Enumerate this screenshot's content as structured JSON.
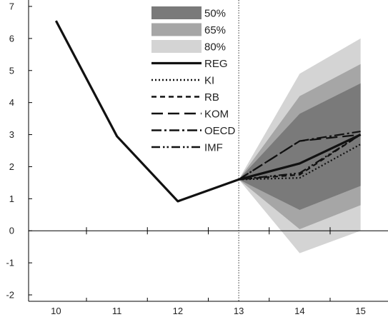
{
  "chart_data": {
    "type": "line",
    "title": "",
    "xlabel": "",
    "ylabel": "",
    "x_ticks": [
      10,
      11,
      12,
      13,
      14,
      15
    ],
    "y_ticks": [
      -2,
      -1,
      0,
      1,
      2,
      3,
      4,
      5,
      6,
      7
    ],
    "xlim": [
      9.55,
      15.45
    ],
    "ylim": [
      -2.2,
      7.2
    ],
    "forecast_start": 13,
    "legend_position": "top-center",
    "fan_bands": [
      {
        "name": "80%",
        "color": "#d4d4d4",
        "x": [
          13,
          14,
          15
        ],
        "low": [
          1.6,
          -0.7,
          0.0
        ],
        "high": [
          1.6,
          4.9,
          6.0
        ]
      },
      {
        "name": "65%",
        "color": "#a6a6a6",
        "x": [
          13,
          14,
          15
        ],
        "low": [
          1.6,
          0.05,
          0.8
        ],
        "high": [
          1.6,
          4.2,
          5.2
        ]
      },
      {
        "name": "50%",
        "color": "#7a7a7a",
        "x": [
          13,
          14,
          15
        ],
        "low": [
          1.6,
          0.65,
          1.4
        ],
        "high": [
          1.6,
          3.65,
          4.6
        ]
      }
    ],
    "series": [
      {
        "name": "REG",
        "style": "solid",
        "x": [
          10,
          11,
          12,
          13,
          14,
          15
        ],
        "values": [
          6.55,
          2.95,
          0.92,
          1.6,
          2.1,
          3.0
        ]
      },
      {
        "name": "KI",
        "style": "dotted",
        "x": [
          13,
          14,
          15
        ],
        "values": [
          1.6,
          1.65,
          2.7
        ]
      },
      {
        "name": "RB",
        "style": "dashed",
        "x": [
          13,
          14,
          15
        ],
        "values": [
          1.6,
          1.75,
          3.0
        ]
      },
      {
        "name": "KOM",
        "style": "longdash",
        "x": [
          13,
          14,
          15
        ],
        "values": [
          1.6,
          2.8,
          3.0
        ]
      },
      {
        "name": "OECD",
        "style": "dashdot",
        "x": [
          13,
          14,
          15
        ],
        "values": [
          1.6,
          2.8,
          3.1
        ]
      },
      {
        "name": "IMF",
        "style": "dashdotdot",
        "x": [
          13,
          14,
          15
        ],
        "values": [
          1.6,
          1.8,
          3.0
        ]
      }
    ]
  }
}
